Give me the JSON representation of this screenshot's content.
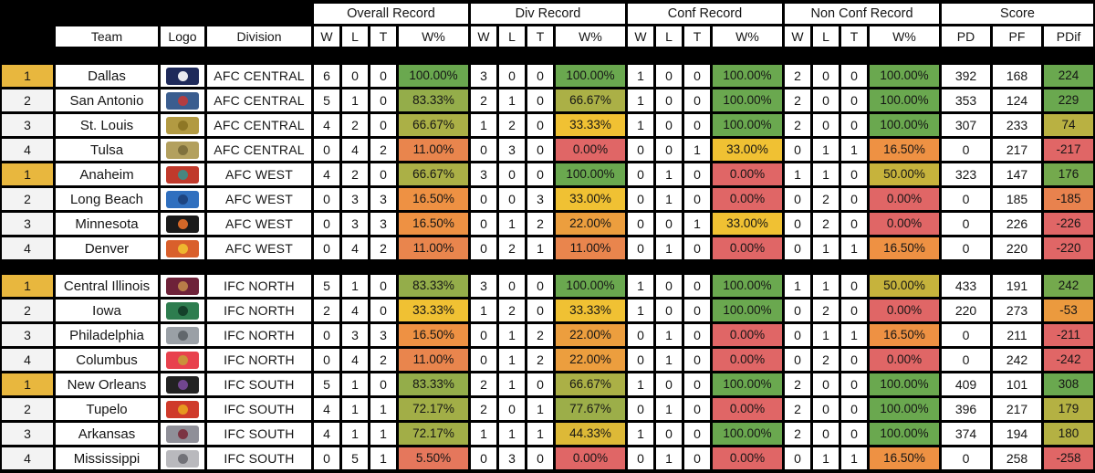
{
  "colors": {
    "background": "#000000",
    "cell": "#ffffff",
    "rank_leader_gold": "#e8b73e",
    "rank_default": "#f3f3f3",
    "scale_green": "#6aa84f",
    "scale_yellow": "#f0c133",
    "scale_orange": "#ee9143",
    "scale_red": "#e06666"
  },
  "chart_data": {
    "type": "table",
    "group_headers": [
      "Overall Record",
      "Div Record",
      "Conf Record",
      "Non Conf Record",
      "Score"
    ],
    "sub_headers": {
      "team": "Team",
      "logo": "Logo",
      "division": "Division",
      "w": "W",
      "l": "L",
      "t": "T",
      "wpct": "W%",
      "pd": "PD",
      "pf": "PF",
      "pdif": "PDif"
    },
    "sections": [
      {
        "rows": [
          {
            "rank": "1",
            "rank_color": "#e8b73e",
            "team": "Dallas",
            "division": "AFC CENTRAL",
            "logo": {
              "label": "navy star emblem",
              "primary": "#1e2a5a",
              "secondary": "#ffffff"
            },
            "overall": {
              "w": "6",
              "l": "0",
              "t": "0",
              "pct": "100.00%",
              "color": "#6aa84f"
            },
            "div": {
              "w": "3",
              "l": "0",
              "t": "0",
              "pct": "100.00%",
              "color": "#6aa84f"
            },
            "conf": {
              "w": "1",
              "l": "0",
              "t": "0",
              "pct": "100.00%",
              "color": "#6aa84f"
            },
            "nonconf": {
              "w": "2",
              "l": "0",
              "t": "0",
              "pct": "100.00%",
              "color": "#6aa84f"
            },
            "pd": "392",
            "pf": "168",
            "pdif": "224",
            "pdif_color": "#6aa84f"
          },
          {
            "rank": "2",
            "rank_color": "#f3f3f3",
            "team": "San Antonio",
            "division": "AFC CENTRAL",
            "logo": {
              "label": "blue stadium banner with red text",
              "primary": "#3a5d8f",
              "secondary": "#c03a3a"
            },
            "overall": {
              "w": "5",
              "l": "1",
              "t": "0",
              "pct": "83.33%",
              "color": "#94ad4a"
            },
            "div": {
              "w": "2",
              "l": "1",
              "t": "0",
              "pct": "66.67%",
              "color": "#abb046"
            },
            "conf": {
              "w": "1",
              "l": "0",
              "t": "0",
              "pct": "100.00%",
              "color": "#6aa84f"
            },
            "nonconf": {
              "w": "2",
              "l": "0",
              "t": "0",
              "pct": "100.00%",
              "color": "#6aa84f"
            },
            "pd": "353",
            "pf": "124",
            "pdif": "229",
            "pdif_color": "#6aa84f"
          },
          {
            "rank": "3",
            "rank_color": "#f3f3f3",
            "team": "St. Louis",
            "division": "AFC CENTRAL",
            "logo": {
              "label": "gold stampede wordmark",
              "primary": "#b29a42",
              "secondary": "#8a7322"
            },
            "overall": {
              "w": "4",
              "l": "2",
              "t": "0",
              "pct": "66.67%",
              "color": "#abb046"
            },
            "div": {
              "w": "1",
              "l": "2",
              "t": "0",
              "pct": "33.33%",
              "color": "#f0c133"
            },
            "conf": {
              "w": "1",
              "l": "0",
              "t": "0",
              "pct": "100.00%",
              "color": "#6aa84f"
            },
            "nonconf": {
              "w": "2",
              "l": "0",
              "t": "0",
              "pct": "100.00%",
              "color": "#6aa84f"
            },
            "pd": "307",
            "pf": "233",
            "pdif": "74",
            "pdif_color": "#b9b142"
          },
          {
            "rank": "4",
            "rank_color": "#f3f3f3",
            "team": "Tulsa",
            "division": "AFC CENTRAL",
            "logo": {
              "label": "gold talon emblem",
              "primary": "#b3a05e",
              "secondary": "#7a6b3a"
            },
            "overall": {
              "w": "0",
              "l": "4",
              "t": "2",
              "pct": "11.00%",
              "color": "#e9854d"
            },
            "div": {
              "w": "0",
              "l": "3",
              "t": "0",
              "pct": "0.00%",
              "color": "#e06666"
            },
            "conf": {
              "w": "0",
              "l": "0",
              "t": "1",
              "pct": "33.00%",
              "color": "#f0c133"
            },
            "nonconf": {
              "w": "0",
              "l": "1",
              "t": "1",
              "pct": "16.50%",
              "color": "#ee9143"
            },
            "pd": "0",
            "pf": "217",
            "pdif": "-217",
            "pdif_color": "#e06666"
          },
          {
            "rank": "1",
            "rank_color": "#e8b73e",
            "team": "Anaheim",
            "division": "AFC WEST",
            "logo": {
              "label": "red script with teal fish",
              "primary": "#c0392b",
              "secondary": "#3a8f8a"
            },
            "overall": {
              "w": "4",
              "l": "2",
              "t": "0",
              "pct": "66.67%",
              "color": "#abb046"
            },
            "div": {
              "w": "3",
              "l": "0",
              "t": "0",
              "pct": "100.00%",
              "color": "#6aa84f"
            },
            "conf": {
              "w": "0",
              "l": "1",
              "t": "0",
              "pct": "0.00%",
              "color": "#e06666"
            },
            "nonconf": {
              "w": "1",
              "l": "1",
              "t": "0",
              "pct": "50.00%",
              "color": "#c6b33c"
            },
            "pd": "323",
            "pf": "147",
            "pdif": "176",
            "pdif_color": "#74a94d"
          },
          {
            "rank": "2",
            "rank_color": "#f3f3f3",
            "team": "Long Beach",
            "division": "AFC WEST",
            "logo": {
              "label": "blue wave crest",
              "primary": "#2f6fbf",
              "secondary": "#1b3f7a"
            },
            "overall": {
              "w": "0",
              "l": "3",
              "t": "3",
              "pct": "16.50%",
              "color": "#ee9143"
            },
            "div": {
              "w": "0",
              "l": "0",
              "t": "3",
              "pct": "33.00%",
              "color": "#f0c133"
            },
            "conf": {
              "w": "0",
              "l": "1",
              "t": "0",
              "pct": "0.00%",
              "color": "#e06666"
            },
            "nonconf": {
              "w": "0",
              "l": "2",
              "t": "0",
              "pct": "0.00%",
              "color": "#e06666"
            },
            "pd": "0",
            "pf": "185",
            "pdif": "-185",
            "pdif_color": "#e8824e"
          },
          {
            "rank": "3",
            "rank_color": "#f3f3f3",
            "team": "Minnesota",
            "division": "AFC WEST",
            "logo": {
              "label": "black circle with orange pike",
              "primary": "#1a1a1a",
              "secondary": "#e8702a"
            },
            "overall": {
              "w": "0",
              "l": "3",
              "t": "3",
              "pct": "16.50%",
              "color": "#ee9143"
            },
            "div": {
              "w": "0",
              "l": "1",
              "t": "2",
              "pct": "22.00%",
              "color": "#ec9e3e"
            },
            "conf": {
              "w": "0",
              "l": "0",
              "t": "1",
              "pct": "33.00%",
              "color": "#f0c133"
            },
            "nonconf": {
              "w": "0",
              "l": "2",
              "t": "0",
              "pct": "0.00%",
              "color": "#e06666"
            },
            "pd": "0",
            "pf": "226",
            "pdif": "-226",
            "pdif_color": "#e06666"
          },
          {
            "rank": "4",
            "rank_color": "#f3f3f3",
            "team": "Denver",
            "division": "AFC WEST",
            "logo": {
              "label": "orange round crest",
              "primary": "#d95f2b",
              "secondary": "#f0c030"
            },
            "overall": {
              "w": "0",
              "l": "4",
              "t": "2",
              "pct": "11.00%",
              "color": "#e9854d"
            },
            "div": {
              "w": "0",
              "l": "2",
              "t": "1",
              "pct": "11.00%",
              "color": "#e9854d"
            },
            "conf": {
              "w": "0",
              "l": "1",
              "t": "0",
              "pct": "0.00%",
              "color": "#e06666"
            },
            "nonconf": {
              "w": "0",
              "l": "1",
              "t": "1",
              "pct": "16.50%",
              "color": "#ee9143"
            },
            "pd": "0",
            "pf": "220",
            "pdif": "-220",
            "pdif_color": "#e06666"
          }
        ]
      },
      {
        "rows": [
          {
            "rank": "1",
            "rank_color": "#e8b73e",
            "team": "Central Illinois",
            "division": "IFC NORTH",
            "logo": {
              "label": "maroon circular crest",
              "primary": "#6e2239",
              "secondary": "#c0874a"
            },
            "overall": {
              "w": "5",
              "l": "1",
              "t": "0",
              "pct": "83.33%",
              "color": "#94ad4a"
            },
            "div": {
              "w": "3",
              "l": "0",
              "t": "0",
              "pct": "100.00%",
              "color": "#6aa84f"
            },
            "conf": {
              "w": "1",
              "l": "0",
              "t": "0",
              "pct": "100.00%",
              "color": "#6aa84f"
            },
            "nonconf": {
              "w": "1",
              "l": "1",
              "t": "0",
              "pct": "50.00%",
              "color": "#c6b33c"
            },
            "pd": "433",
            "pf": "191",
            "pdif": "242",
            "pdif_color": "#74a94d"
          },
          {
            "rank": "2",
            "rank_color": "#f3f3f3",
            "team": "Iowa",
            "division": "IFC NORTH",
            "logo": {
              "label": "green monster with WOO text",
              "primary": "#2e7d4f",
              "secondary": "#123b26"
            },
            "overall": {
              "w": "2",
              "l": "4",
              "t": "0",
              "pct": "33.33%",
              "color": "#f0c133"
            },
            "div": {
              "w": "1",
              "l": "2",
              "t": "0",
              "pct": "33.33%",
              "color": "#f0c133"
            },
            "conf": {
              "w": "1",
              "l": "0",
              "t": "0",
              "pct": "100.00%",
              "color": "#6aa84f"
            },
            "nonconf": {
              "w": "0",
              "l": "2",
              "t": "0",
              "pct": "0.00%",
              "color": "#e06666"
            },
            "pd": "220",
            "pf": "273",
            "pdif": "-53",
            "pdif_color": "#eb9a3e"
          },
          {
            "rank": "3",
            "rank_color": "#f3f3f3",
            "team": "Philadelphia",
            "division": "IFC NORTH",
            "logo": {
              "label": "silver winged SOUL mark",
              "primary": "#9aa0a6",
              "secondary": "#5b6066"
            },
            "overall": {
              "w": "0",
              "l": "3",
              "t": "3",
              "pct": "16.50%",
              "color": "#ee9143"
            },
            "div": {
              "w": "0",
              "l": "1",
              "t": "2",
              "pct": "22.00%",
              "color": "#ec9e3e"
            },
            "conf": {
              "w": "0",
              "l": "1",
              "t": "0",
              "pct": "0.00%",
              "color": "#e06666"
            },
            "nonconf": {
              "w": "0",
              "l": "1",
              "t": "1",
              "pct": "16.50%",
              "color": "#ee9143"
            },
            "pd": "0",
            "pf": "211",
            "pdif": "-211",
            "pdif_color": "#e06666"
          },
          {
            "rank": "4",
            "rank_color": "#f3f3f3",
            "team": "Columbus",
            "division": "IFC NORTH",
            "logo": {
              "label": "red crest with gold face",
              "primary": "#e8414d",
              "secondary": "#c79a3a"
            },
            "overall": {
              "w": "0",
              "l": "4",
              "t": "2",
              "pct": "11.00%",
              "color": "#e9854d"
            },
            "div": {
              "w": "0",
              "l": "1",
              "t": "2",
              "pct": "22.00%",
              "color": "#ec9e3e"
            },
            "conf": {
              "w": "0",
              "l": "1",
              "t": "0",
              "pct": "0.00%",
              "color": "#e06666"
            },
            "nonconf": {
              "w": "0",
              "l": "2",
              "t": "0",
              "pct": "0.00%",
              "color": "#e06666"
            },
            "pd": "0",
            "pf": "242",
            "pdif": "-242",
            "pdif_color": "#e06666"
          },
          {
            "rank": "1",
            "rank_color": "#e8b73e",
            "team": "New Orleans",
            "division": "IFC SOUTH",
            "logo": {
              "label": "black top hat VooDoo mark",
              "primary": "#222222",
              "secondary": "#7a4a9a"
            },
            "overall": {
              "w": "5",
              "l": "1",
              "t": "0",
              "pct": "83.33%",
              "color": "#94ad4a"
            },
            "div": {
              "w": "2",
              "l": "1",
              "t": "0",
              "pct": "66.67%",
              "color": "#abb046"
            },
            "conf": {
              "w": "1",
              "l": "0",
              "t": "0",
              "pct": "100.00%",
              "color": "#6aa84f"
            },
            "nonconf": {
              "w": "2",
              "l": "0",
              "t": "0",
              "pct": "100.00%",
              "color": "#6aa84f"
            },
            "pd": "409",
            "pf": "101",
            "pdif": "308",
            "pdif_color": "#6aa84f"
          },
          {
            "rank": "2",
            "rank_color": "#f3f3f3",
            "team": "Tupelo",
            "division": "IFC SOUTH",
            "logo": {
              "label": "red fire ant circle",
              "primary": "#cf3a2a",
              "secondary": "#e8a21f"
            },
            "overall": {
              "w": "4",
              "l": "1",
              "t": "1",
              "pct": "72.17%",
              "color": "#a2ae47"
            },
            "div": {
              "w": "2",
              "l": "0",
              "t": "1",
              "pct": "77.67%",
              "color": "#9cae49"
            },
            "conf": {
              "w": "0",
              "l": "1",
              "t": "0",
              "pct": "0.00%",
              "color": "#e06666"
            },
            "nonconf": {
              "w": "2",
              "l": "0",
              "t": "0",
              "pct": "100.00%",
              "color": "#6aa84f"
            },
            "pd": "396",
            "pf": "217",
            "pdif": "179",
            "pdif_color": "#b4b143"
          },
          {
            "rank": "3",
            "rank_color": "#f3f3f3",
            "team": "Arkansas",
            "division": "IFC SOUTH",
            "logo": {
              "label": "gray twister with maroon",
              "primary": "#8f8f98",
              "secondary": "#7a2a3a"
            },
            "overall": {
              "w": "4",
              "l": "1",
              "t": "1",
              "pct": "72.17%",
              "color": "#a2ae47"
            },
            "div": {
              "w": "1",
              "l": "1",
              "t": "1",
              "pct": "44.33%",
              "color": "#ddb937"
            },
            "conf": {
              "w": "1",
              "l": "0",
              "t": "0",
              "pct": "100.00%",
              "color": "#6aa84f"
            },
            "nonconf": {
              "w": "2",
              "l": "0",
              "t": "0",
              "pct": "100.00%",
              "color": "#6aa84f"
            },
            "pd": "374",
            "pf": "194",
            "pdif": "180",
            "pdif_color": "#b4b143"
          },
          {
            "rank": "4",
            "rank_color": "#f3f3f3",
            "team": "Mississippi",
            "division": "IFC SOUTH",
            "logo": {
              "label": "gray spear emblem",
              "primary": "#b9b9bd",
              "secondary": "#6a6a70"
            },
            "overall": {
              "w": "0",
              "l": "5",
              "t": "1",
              "pct": "5.50%",
              "color": "#e5775c"
            },
            "div": {
              "w": "0",
              "l": "3",
              "t": "0",
              "pct": "0.00%",
              "color": "#e06666"
            },
            "conf": {
              "w": "0",
              "l": "1",
              "t": "0",
              "pct": "0.00%",
              "color": "#e06666"
            },
            "nonconf": {
              "w": "0",
              "l": "1",
              "t": "1",
              "pct": "16.50%",
              "color": "#ee9143"
            },
            "pd": "0",
            "pf": "258",
            "pdif": "-258",
            "pdif_color": "#e06666"
          }
        ]
      }
    ]
  }
}
